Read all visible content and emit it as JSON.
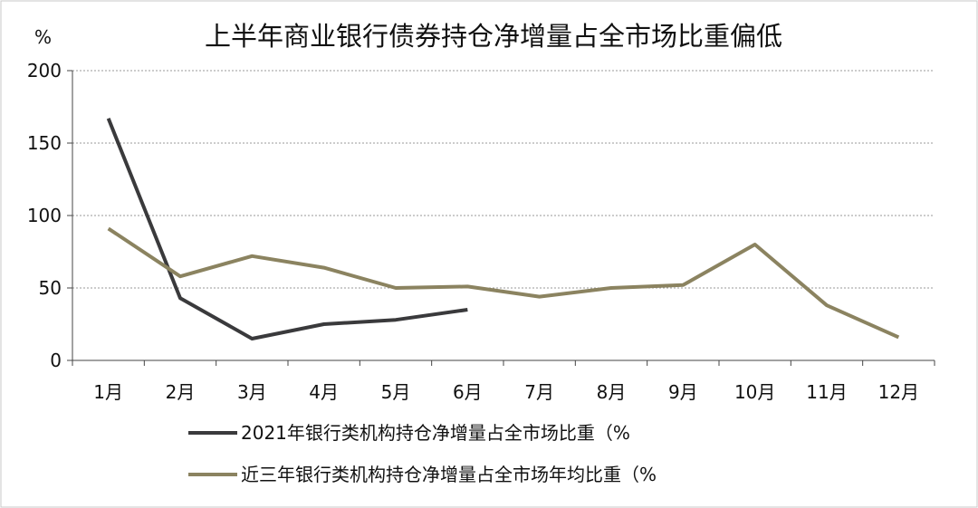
{
  "chart_data": {
    "type": "line",
    "title": "上半年商业银行债券持仓净增量占全市场比重偏低",
    "unit_label": "%",
    "xlabel": "",
    "ylabel": "",
    "ylim": [
      0,
      200
    ],
    "yticks": [
      "0",
      "50",
      "100",
      "150",
      "200"
    ],
    "grid": true,
    "legend_position": "bottom",
    "categories": [
      "1月",
      "2月",
      "3月",
      "4月",
      "5月",
      "6月",
      "7月",
      "8月",
      "9月",
      "10月",
      "11月",
      "12月"
    ],
    "series": [
      {
        "name": "2021年银行类机构持仓净增量占全市场比重（%",
        "color": "#3a3a3c",
        "values": [
          167,
          43,
          15,
          25,
          28,
          35,
          null,
          null,
          null,
          null,
          null,
          null
        ]
      },
      {
        "name": "近三年银行类机构持仓净增量占全市场年均比重（%",
        "color": "#8b8360",
        "values": [
          91,
          58,
          72,
          64,
          50,
          51,
          44,
          50,
          52,
          80,
          38,
          16
        ]
      }
    ]
  }
}
